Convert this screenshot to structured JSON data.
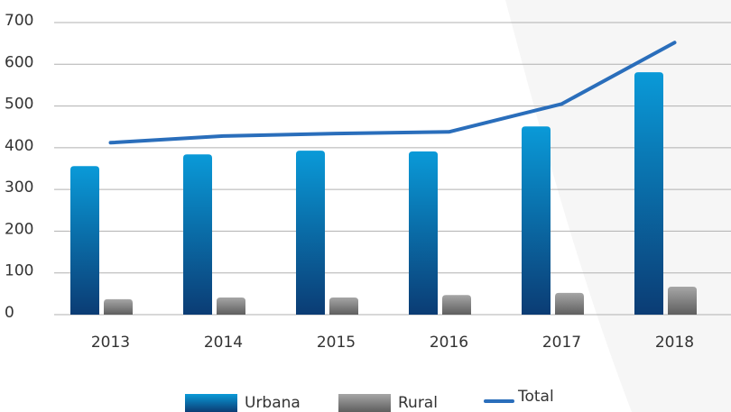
{
  "chart_data": {
    "type": "bar",
    "categories": [
      "2013",
      "2014",
      "2015",
      "2016",
      "2017",
      "2018"
    ],
    "series": [
      {
        "name": "Urbana",
        "type": "bar",
        "color": "#0a9ad8",
        "values": [
          356,
          384,
          393,
          391,
          451,
          581
        ]
      },
      {
        "name": "Rural",
        "type": "bar",
        "color": "#a6a6a6",
        "values": [
          37,
          41,
          41,
          47,
          52,
          67
        ]
      },
      {
        "name": "Total",
        "type": "line",
        "color": "#2a6ebb",
        "values": [
          412,
          428,
          434,
          438,
          505,
          652
        ]
      }
    ],
    "ylim": [
      0,
      700
    ],
    "yticks": [
      0,
      100,
      200,
      300,
      400,
      500,
      600,
      700
    ],
    "grid": true
  }
}
